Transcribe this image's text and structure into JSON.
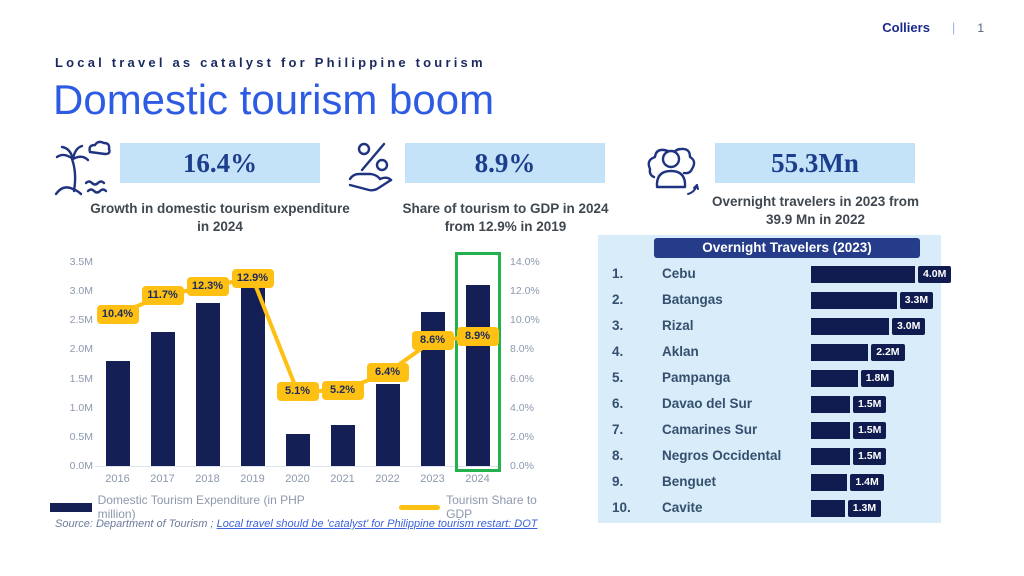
{
  "header": {
    "brand": "Colliers",
    "separator": "|",
    "page_number": "1"
  },
  "subtitle": "Local travel as catalyst for Philippine tourism",
  "title": "Domestic tourism boom",
  "stats": [
    {
      "icon": "island-palm-icon",
      "value": "16.4%",
      "caption": "Growth in domestic tourism expenditure in 2024"
    },
    {
      "icon": "percent-hand-icon",
      "value": "8.9%",
      "caption": "Share of tourism to GDP in 2024 from 12.9% in 2019"
    },
    {
      "icon": "travelers-group-icon",
      "value": "55.3Mn",
      "caption": "Overnight travelers in 2023 from 39.9 Mn in 2022"
    }
  ],
  "chart_data": {
    "type": "bar",
    "categories": [
      "2016",
      "2017",
      "2018",
      "2019",
      "2020",
      "2021",
      "2022",
      "2023",
      "2024"
    ],
    "series": [
      {
        "name": "Domestic Tourism Expenditure (in PHP million)",
        "type": "bar",
        "axis": "left",
        "values": [
          1.8,
          2.3,
          2.8,
          3.1,
          0.55,
          0.7,
          1.4,
          2.65,
          3.1
        ],
        "color": "#141f55"
      },
      {
        "name": "Tourism Share to GDP",
        "type": "line",
        "axis": "right",
        "values": [
          10.4,
          11.7,
          12.3,
          12.9,
          5.1,
          5.2,
          6.4,
          8.6,
          8.9
        ],
        "labels": [
          "10.4%",
          "11.7%",
          "12.3%",
          "12.9%",
          "5.1%",
          "5.2%",
          "6.4%",
          "8.6%",
          "8.9%"
        ],
        "color": "#fdc013"
      }
    ],
    "left_axis": {
      "min": 0,
      "max": 3.5,
      "step": 0.5,
      "suffix": "M",
      "decimals": 1
    },
    "right_axis": {
      "min": 0,
      "max": 14,
      "step": 2,
      "suffix": "%",
      "decimals": 1
    },
    "highlight_category": "2024",
    "highlight_color": "#22b14c",
    "grid": false,
    "legend_position": "bottom"
  },
  "ranking": {
    "title": "Overnight Travelers (2023)",
    "max_value": 4.0,
    "items": [
      {
        "rank": "1.",
        "name": "Cebu",
        "value": 4.0,
        "label": "4.0M"
      },
      {
        "rank": "2.",
        "name": "Batangas",
        "value": 3.3,
        "label": "3.3M"
      },
      {
        "rank": "3.",
        "name": "Rizal",
        "value": 3.0,
        "label": "3.0M"
      },
      {
        "rank": "4.",
        "name": "Aklan",
        "value": 2.2,
        "label": "2.2M"
      },
      {
        "rank": "5.",
        "name": "Pampanga",
        "value": 1.8,
        "label": "1.8M"
      },
      {
        "rank": "6.",
        "name": "Davao del Sur",
        "value": 1.5,
        "label": "1.5M"
      },
      {
        "rank": "7.",
        "name": "Camarines Sur",
        "value": 1.5,
        "label": "1.5M"
      },
      {
        "rank": "8.",
        "name": "Negros Occidental",
        "value": 1.5,
        "label": "1.5M"
      },
      {
        "rank": "9.",
        "name": "Benguet",
        "value": 1.4,
        "label": "1.4M"
      },
      {
        "rank": "10.",
        "name": "Cavite",
        "value": 1.3,
        "label": "1.3M"
      }
    ]
  },
  "source": {
    "prefix": "Source: Department of Tourism ; ",
    "link": "Local travel should be 'catalyst' for Philippine tourism restart: DOT"
  }
}
